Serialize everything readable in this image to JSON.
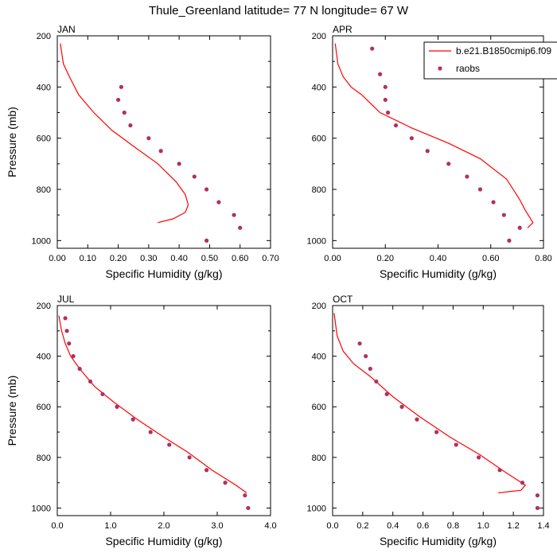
{
  "figure": {
    "title": "Thule_Greenland  latitude= 77 N longitude= 67 W"
  },
  "legend": {
    "line_label": "b.e21.B1850cmip6.f09",
    "dots_label": "raobs",
    "placement": "top-right of APR panel"
  },
  "colors": {
    "model_line": "#ff0000",
    "raobs_dot": "#b03060",
    "axes": "#000000"
  },
  "chart_data": [
    {
      "type": "line",
      "panel": "JAN",
      "title": "JAN",
      "xlabel": "Specific Humidity (g/kg)",
      "ylabel": "Pressure (mb)",
      "xlim": [
        0,
        0.7
      ],
      "ylim": [
        1030,
        200
      ],
      "xticks": [
        0,
        0.1,
        0.2,
        0.3,
        0.4,
        0.5,
        0.6,
        0.7
      ],
      "xtick_labels": [
        "0.00",
        "0.10",
        "0.20",
        "0.30",
        "0.40",
        "0.50",
        "0.60",
        "0.70"
      ],
      "yticks": [
        200,
        400,
        600,
        800,
        1000
      ],
      "ytick_labels": [
        "200",
        "400",
        "600",
        "800",
        "1000"
      ],
      "series": [
        {
          "name": "b.e21.B1850cmip6.f09",
          "kind": "line",
          "x": [
            0.01,
            0.02,
            0.04,
            0.07,
            0.12,
            0.18,
            0.26,
            0.33,
            0.39,
            0.42,
            0.43,
            0.42,
            0.38,
            0.33
          ],
          "y": [
            230,
            310,
            360,
            430,
            500,
            570,
            640,
            700,
            770,
            820,
            860,
            890,
            915,
            930
          ]
        },
        {
          "name": "raobs",
          "kind": "scatter",
          "x": [
            0.21,
            0.2,
            0.22,
            0.24,
            0.3,
            0.34,
            0.4,
            0.45,
            0.49,
            0.53,
            0.58,
            0.6,
            0.49
          ],
          "y": [
            400,
            450,
            500,
            550,
            600,
            650,
            700,
            750,
            800,
            850,
            900,
            950,
            1000
          ]
        }
      ]
    },
    {
      "type": "line",
      "panel": "APR",
      "title": "APR",
      "xlabel": "Specific Humidity (g/kg)",
      "ylabel": "",
      "xlim": [
        0,
        0.8
      ],
      "ylim": [
        1030,
        200
      ],
      "xticks": [
        0,
        0.2,
        0.4,
        0.6,
        0.8
      ],
      "xtick_labels": [
        "0.00",
        "0.20",
        "0.40",
        "0.60",
        "0.80"
      ],
      "yticks": [
        200,
        400,
        600,
        800,
        1000
      ],
      "ytick_labels": [
        "200",
        "400",
        "600",
        "800",
        "1000"
      ],
      "series": [
        {
          "name": "b.e21.B1850cmip6.f09",
          "kind": "line",
          "x": [
            0.01,
            0.02,
            0.04,
            0.07,
            0.11,
            0.18,
            0.3,
            0.44,
            0.56,
            0.66,
            0.71,
            0.73,
            0.76,
            0.74
          ],
          "y": [
            230,
            310,
            360,
            400,
            430,
            500,
            560,
            620,
            680,
            760,
            840,
            880,
            930,
            950
          ]
        },
        {
          "name": "raobs",
          "kind": "scatter",
          "x": [
            0.15,
            0.18,
            0.2,
            0.2,
            0.21,
            0.24,
            0.3,
            0.36,
            0.44,
            0.51,
            0.56,
            0.61,
            0.65,
            0.71,
            0.67
          ],
          "y": [
            250,
            350,
            400,
            450,
            500,
            550,
            600,
            650,
            700,
            750,
            800,
            850,
            900,
            950,
            1000
          ]
        }
      ]
    },
    {
      "type": "line",
      "panel": "JUL",
      "title": "JUL",
      "xlabel": "Specific Humidity (g/kg)",
      "ylabel": "Pressure (mb)",
      "xlim": [
        0,
        4.0
      ],
      "ylim": [
        1030,
        200
      ],
      "xticks": [
        0,
        1,
        2,
        3,
        4
      ],
      "xtick_labels": [
        "0.0",
        "1.0",
        "2.0",
        "3.0",
        "4.0"
      ],
      "yticks": [
        200,
        400,
        600,
        800,
        1000
      ],
      "ytick_labels": [
        "200",
        "400",
        "600",
        "800",
        "1000"
      ],
      "series": [
        {
          "name": "b.e21.B1850cmip6.f09",
          "kind": "line",
          "x": [
            0.03,
            0.08,
            0.15,
            0.25,
            0.42,
            0.7,
            1.05,
            1.5,
            2.0,
            2.45,
            2.9,
            3.35,
            3.55
          ],
          "y": [
            240,
            300,
            350,
            400,
            450,
            520,
            580,
            650,
            720,
            780,
            850,
            910,
            940
          ]
        },
        {
          "name": "raobs",
          "kind": "scatter",
          "x": [
            0.15,
            0.18,
            0.22,
            0.3,
            0.42,
            0.62,
            0.85,
            1.12,
            1.42,
            1.75,
            2.1,
            2.48,
            2.8,
            3.15,
            3.52,
            3.58
          ],
          "y": [
            250,
            300,
            350,
            400,
            450,
            500,
            550,
            600,
            650,
            700,
            750,
            800,
            850,
            900,
            950,
            1000
          ]
        }
      ]
    },
    {
      "type": "line",
      "panel": "OCT",
      "title": "OCT",
      "xlabel": "Specific Humidity (g/kg)",
      "ylabel": "",
      "xlim": [
        0,
        1.4
      ],
      "ylim": [
        1030,
        200
      ],
      "xticks": [
        0,
        0.2,
        0.4,
        0.6,
        0.8,
        1.0,
        1.2,
        1.4
      ],
      "xtick_labels": [
        "0.0",
        "0.2",
        "0.4",
        "0.6",
        "0.8",
        "1.0",
        "1.2",
        "1.4"
      ],
      "yticks": [
        200,
        400,
        600,
        800,
        1000
      ],
      "ytick_labels": [
        "200",
        "400",
        "600",
        "800",
        "1000"
      ],
      "series": [
        {
          "name": "b.e21.B1850cmip6.f09",
          "kind": "line",
          "x": [
            0.01,
            0.03,
            0.07,
            0.14,
            0.25,
            0.4,
            0.58,
            0.78,
            0.98,
            1.15,
            1.28,
            1.25,
            1.1
          ],
          "y": [
            230,
            320,
            380,
            430,
            480,
            560,
            640,
            720,
            790,
            860,
            910,
            930,
            940
          ]
        },
        {
          "name": "raobs",
          "kind": "scatter",
          "x": [
            0.18,
            0.22,
            0.25,
            0.29,
            0.36,
            0.46,
            0.56,
            0.69,
            0.82,
            0.97,
            1.11,
            1.26,
            1.36,
            1.36
          ],
          "y": [
            350,
            400,
            450,
            500,
            550,
            600,
            650,
            700,
            750,
            800,
            850,
            900,
            950,
            1000
          ]
        }
      ]
    }
  ]
}
